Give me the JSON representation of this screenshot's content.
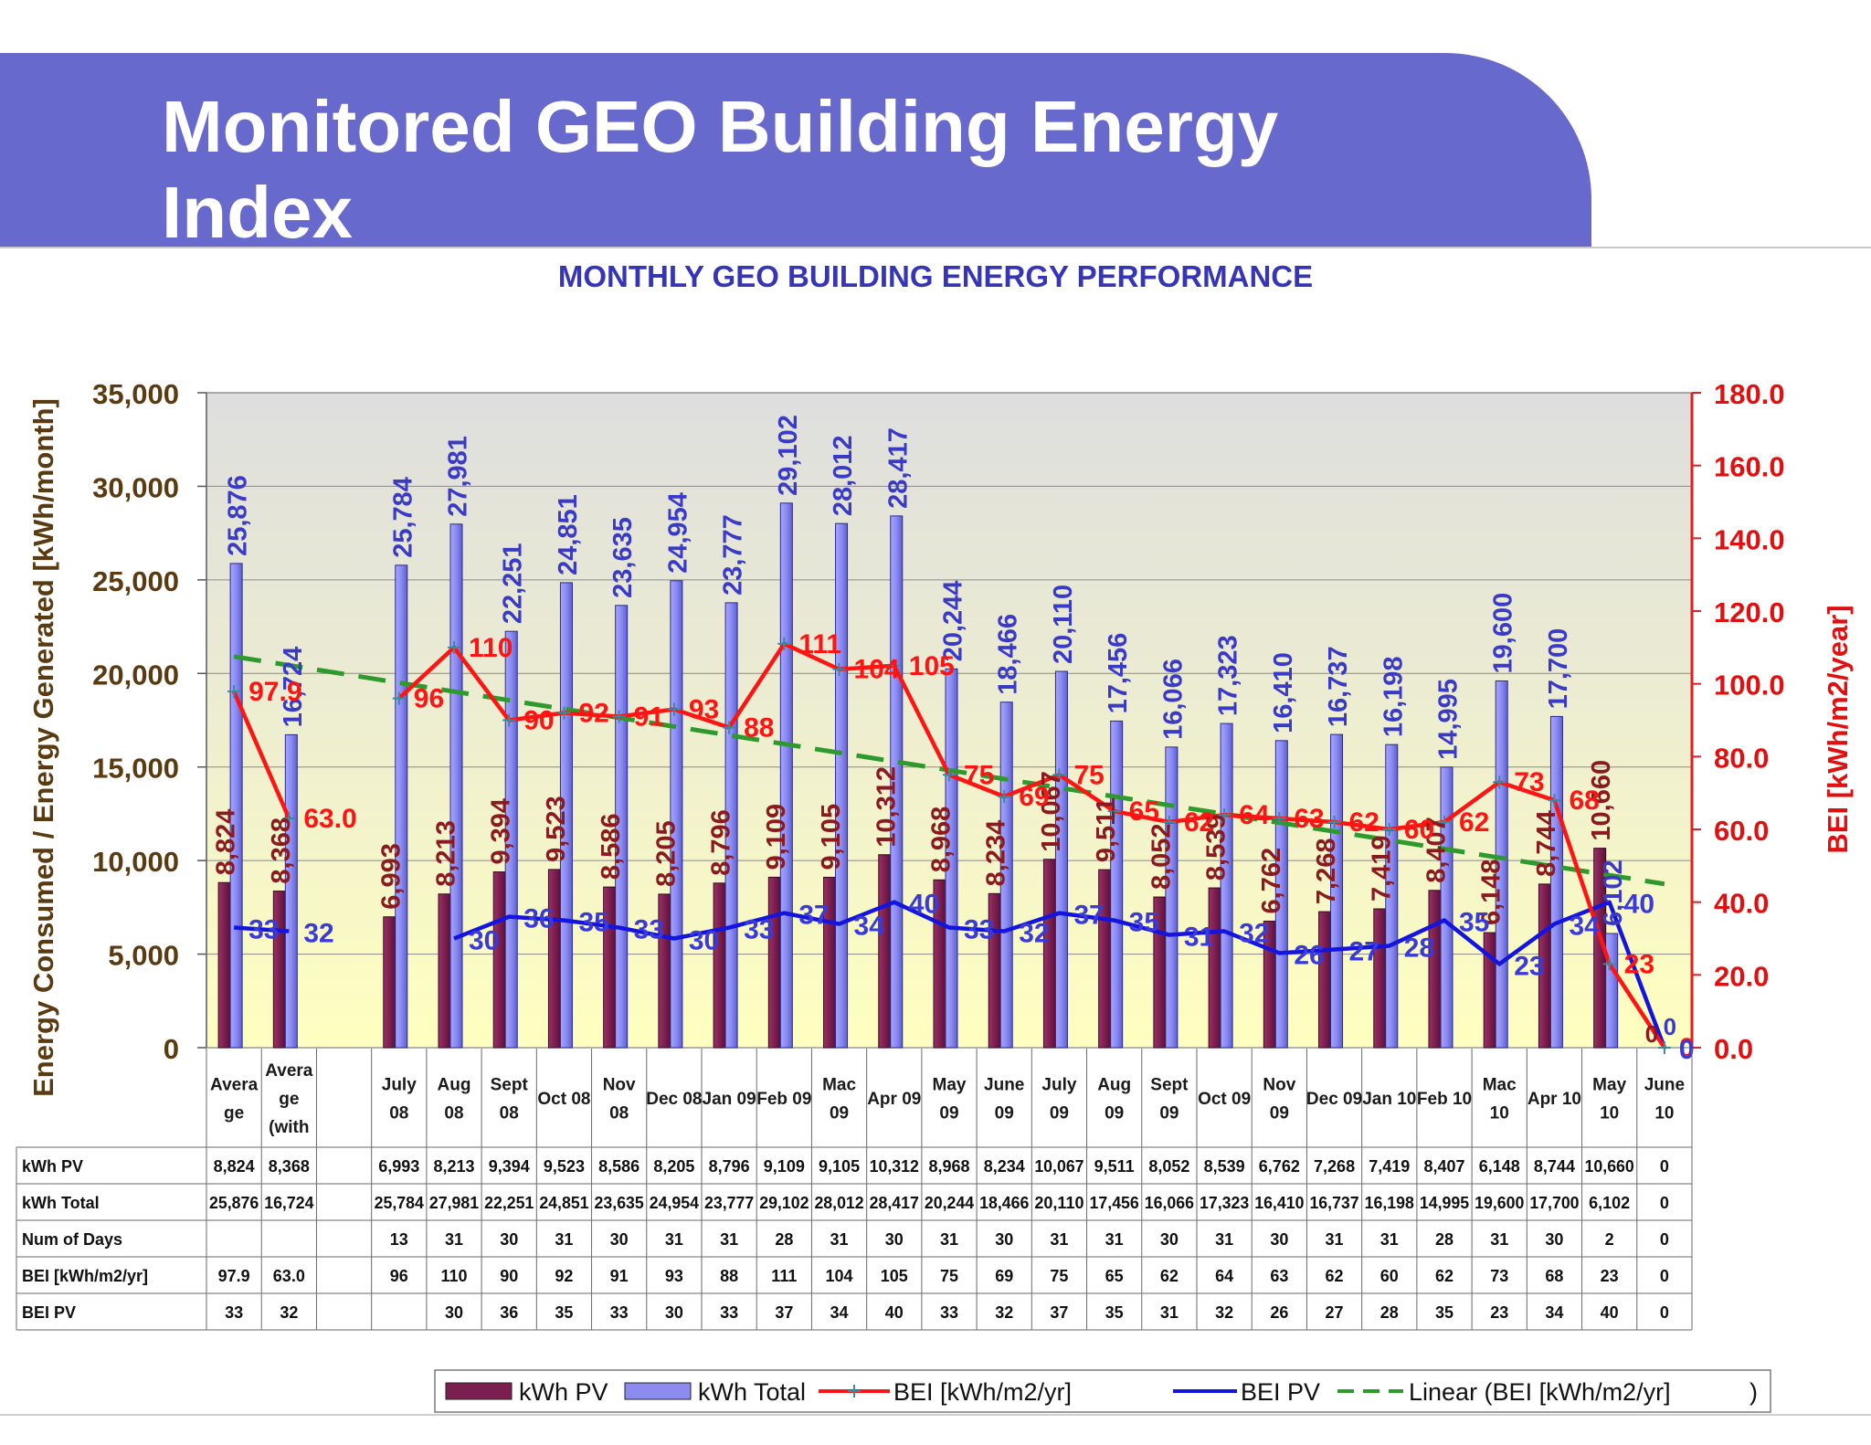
{
  "slide": {
    "title": "Monitored GEO Building Energy Index"
  },
  "chart_data": {
    "type": "bar",
    "title": "MONTHLY GEO BUILDING ENERGY PERFORMANCE",
    "ylabel": "Energy Consumed / Energy Generated   [kWh/month]",
    "y2label": "BEI  [kWh/m2/year]",
    "ylim": [
      0,
      35000
    ],
    "y2lim": [
      0,
      180
    ],
    "yticks": [
      "0",
      "5,000",
      "10,000",
      "15,000",
      "20,000",
      "25,000",
      "30,000",
      "35,000"
    ],
    "y2ticks": [
      "0.0",
      "20.0",
      "40.0",
      "60.0",
      "80.0",
      "100.0",
      "120.0",
      "140.0",
      "160.0",
      "180.0"
    ],
    "grid": true,
    "legend_position": "bottom",
    "categories": [
      [
        "Avera",
        "ge"
      ],
      [
        "Avera",
        "ge",
        "(with"
      ],
      [],
      [
        "July",
        "08"
      ],
      [
        "Aug",
        "08"
      ],
      [
        "Sept",
        "08"
      ],
      [
        "Oct 08"
      ],
      [
        "Nov",
        "08"
      ],
      [
        "Dec 08"
      ],
      [
        "Jan 09"
      ],
      [
        "Feb 09"
      ],
      [
        "Mac",
        "09"
      ],
      [
        "Apr 09"
      ],
      [
        "May",
        "09"
      ],
      [
        "June",
        "09"
      ],
      [
        "July",
        "09"
      ],
      [
        "Aug",
        "09"
      ],
      [
        "Sept",
        "09"
      ],
      [
        "Oct 09"
      ],
      [
        "Nov",
        "09"
      ],
      [
        "Dec 09"
      ],
      [
        "Jan 10"
      ],
      [
        "Feb 10"
      ],
      [
        "Mac",
        "10"
      ],
      [
        "Apr 10"
      ],
      [
        "May",
        "10"
      ],
      [
        "June",
        "10"
      ]
    ],
    "series": [
      {
        "name": "kWh PV",
        "kind": "bar",
        "axis": "left",
        "color": "#7b1e50",
        "values": [
          8824,
          8368,
          null,
          6993,
          8213,
          9394,
          9523,
          8586,
          8205,
          8796,
          9109,
          9105,
          10312,
          8968,
          8234,
          10067,
          9511,
          8052,
          8539,
          6762,
          7268,
          7419,
          8407,
          6148,
          8744,
          10660,
          0
        ],
        "labels": [
          "8,824",
          "8,368",
          "",
          "6,993",
          "8,213",
          "9,394",
          "9,523",
          "8,586",
          "8,205",
          "8,796",
          "9,109",
          "9,105",
          "10,312",
          "8,968",
          "8,234",
          "10,067",
          "9,511",
          "8,052",
          "8,539",
          "6,762",
          "7,268",
          "7,419",
          "8,407",
          "6,148",
          "8,744",
          "10,660",
          "0"
        ]
      },
      {
        "name": "kWh Total",
        "kind": "bar",
        "axis": "left",
        "color": "#8c8cf0",
        "values": [
          25876,
          16724,
          null,
          25784,
          27981,
          22251,
          24851,
          23635,
          24954,
          23777,
          29102,
          28012,
          28417,
          20244,
          18466,
          20110,
          17456,
          16066,
          17323,
          16410,
          16737,
          16198,
          14995,
          19600,
          17700,
          6102,
          0
        ],
        "labels": [
          "25,876",
          "16,724",
          "",
          "25,784",
          "27,981",
          "22,251",
          "24,851",
          "23,635",
          "24,954",
          "23,777",
          "29,102",
          "28,012",
          "28,417",
          "20,244",
          "18,466",
          "20,110",
          "17,456",
          "16,066",
          "17,323",
          "16,410",
          "16,737",
          "16,198",
          "14,995",
          "19,600",
          "17,700",
          "6,102",
          "0"
        ]
      },
      {
        "name": "BEI [kWh/m2/yr]",
        "kind": "line",
        "axis": "right",
        "color": "#ff1414",
        "values": [
          97.9,
          63.0,
          null,
          96,
          110,
          90,
          92,
          91,
          93,
          88,
          111,
          104,
          105,
          75,
          69,
          75,
          65,
          62,
          64,
          63,
          62,
          60,
          62,
          73,
          68,
          23,
          0
        ],
        "labels": [
          "97.9",
          "63.0",
          "",
          "96",
          "110",
          "90",
          "92",
          "91",
          "93",
          "88",
          "111",
          "104",
          "105",
          "75",
          "69",
          "75",
          "65",
          "62",
          "64",
          "63",
          "62",
          "60",
          "62",
          "73",
          "68",
          "23",
          "0"
        ]
      },
      {
        "name": "BEI PV",
        "kind": "line",
        "axis": "right",
        "color": "#1414e0",
        "values": [
          33,
          32,
          null,
          null,
          30,
          36,
          35,
          33,
          30,
          33,
          37,
          34,
          40,
          33,
          32,
          37,
          35,
          31,
          32,
          26,
          27,
          28,
          35,
          23,
          34,
          40,
          0
        ],
        "labels": [
          "33",
          "32",
          "",
          "",
          "30",
          "36",
          "35",
          "33",
          "30",
          "33",
          "37",
          "34",
          "40",
          "33",
          "32",
          "37",
          "35",
          "31",
          "32",
          "26",
          "27",
          "28",
          "35",
          "23",
          "34",
          "40",
          "0"
        ]
      },
      {
        "name": "Linear (BEI [kWh/m2/yr]",
        "kind": "trend",
        "axis": "right",
        "color": "#2e9a2e",
        "from": 107.5,
        "to": 45
      }
    ],
    "legend_suffix": ")",
    "table": {
      "rows": [
        {
          "label": "kWh PV",
          "cells": [
            "8,824",
            "8,368",
            "",
            "6,993",
            "8,213",
            "9,394",
            "9,523",
            "8,586",
            "8,205",
            "8,796",
            "9,109",
            "9,105",
            "10,312",
            "8,968",
            "8,234",
            "10,067",
            "9,511",
            "8,052",
            "8,539",
            "6,762",
            "7,268",
            "7,419",
            "8,407",
            "6,148",
            "8,744",
            "10,660",
            "0"
          ]
        },
        {
          "label": "kWh Total",
          "cells": [
            "25,876",
            "16,724",
            "",
            "25,784",
            "27,981",
            "22,251",
            "24,851",
            "23,635",
            "24,954",
            "23,777",
            "29,102",
            "28,012",
            "28,417",
            "20,244",
            "18,466",
            "20,110",
            "17,456",
            "16,066",
            "17,323",
            "16,410",
            "16,737",
            "16,198",
            "14,995",
            "19,600",
            "17,700",
            "6,102",
            "0"
          ]
        },
        {
          "label": "Num of Days",
          "cells": [
            "",
            "",
            "",
            "13",
            "31",
            "30",
            "31",
            "30",
            "31",
            "31",
            "28",
            "31",
            "30",
            "31",
            "30",
            "31",
            "31",
            "30",
            "31",
            "30",
            "31",
            "31",
            "28",
            "31",
            "30",
            "2",
            "0"
          ]
        },
        {
          "label": "BEI [kWh/m2/yr]",
          "cells": [
            "97.9",
            "63.0",
            "",
            "96",
            "110",
            "90",
            "92",
            "91",
            "93",
            "88",
            "111",
            "104",
            "105",
            "75",
            "69",
            "75",
            "65",
            "62",
            "64",
            "63",
            "62",
            "60",
            "62",
            "73",
            "68",
            "23",
            "0"
          ]
        },
        {
          "label": "BEI PV",
          "cells": [
            "33",
            "32",
            "",
            "",
            "30",
            "36",
            "35",
            "33",
            "30",
            "33",
            "37",
            "34",
            "40",
            "33",
            "32",
            "37",
            "35",
            "31",
            "32",
            "26",
            "27",
            "28",
            "35",
            "23",
            "34",
            "40",
            "0"
          ]
        }
      ]
    }
  }
}
